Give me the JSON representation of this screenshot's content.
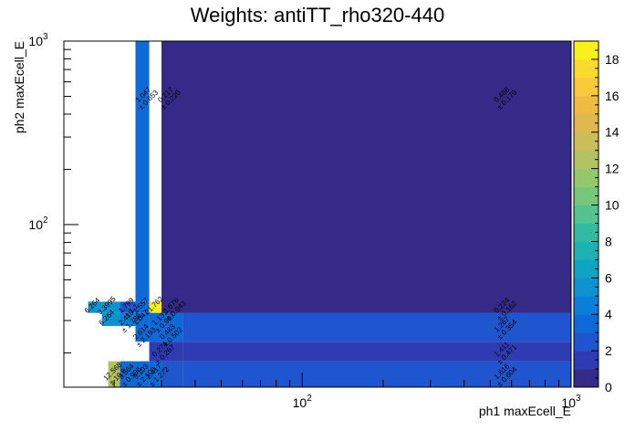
{
  "chart_data": {
    "type": "heatmap",
    "title": "Weights: antiTT_rho320-440",
    "xlabel": "ph1 maxEcell_E",
    "ylabel": "ph2 maxEcell_E",
    "x_scale": "log",
    "y_scale": "log",
    "xlim": [
      13,
      1000
    ],
    "ylim": [
      13,
      1000
    ],
    "x_tick_labels": [
      {
        "value": 100,
        "base": "10",
        "exp": "2"
      },
      {
        "value": 1000,
        "base": "10",
        "exp": "3"
      }
    ],
    "y_tick_labels": [
      {
        "value": 100,
        "base": "10",
        "exp": "2"
      },
      {
        "value": 1000,
        "base": "10",
        "exp": "3"
      }
    ],
    "colorbar": {
      "min": 0,
      "max": 19,
      "ticks": [
        0,
        2,
        4,
        6,
        8,
        10,
        12,
        14,
        16,
        18
      ],
      "palette": [
        "#352a87",
        "#2f3bb3",
        "#1f55cf",
        "#0d6ad8",
        "#0a7ed8",
        "#0d93d0",
        "#0ea4c4",
        "#1cb1b3",
        "#33bba2",
        "#53c48f",
        "#75c77b",
        "#95c86d",
        "#b3c362",
        "#cbbd57",
        "#dfb84e",
        "#efbb43",
        "#f8c93a",
        "#fadb2d",
        "#f9f01c"
      ]
    },
    "cells": [
      {
        "x0": 24,
        "x1": 27,
        "y0": 38,
        "y1": 1000,
        "value": 3.3,
        "label": "1.047",
        "err": "± 0.653",
        "lx": 26,
        "ly": 500
      },
      {
        "x0": 30,
        "x1": 1000,
        "y0": 33,
        "y1": 1000,
        "value": 0.3,
        "label": "0.217",
        "err": "± 0.220",
        "lx": 31.5,
        "ly": 500
      },
      {
        "x0": 30,
        "x1": 1000,
        "y0": 33,
        "y1": 1000,
        "value": 0.3,
        "label": "0.488",
        "err": "± 0.179",
        "lx": 560,
        "ly": 500
      },
      {
        "x0": 16,
        "x1": 18,
        "y0": 33,
        "y1": 38,
        "value": 5.5,
        "label": "6.264",
        "err": "",
        "lx": 16.8,
        "ly": 35.5
      },
      {
        "x0": 18,
        "x1": 21,
        "y0": 33,
        "y1": 38,
        "value": 5.0,
        "label": "3.3995",
        "err": "",
        "lx": 19.0,
        "ly": 35.5
      },
      {
        "x0": 21,
        "x1": 24,
        "y0": 33,
        "y1": 38,
        "value": 2.0,
        "label": "1.799",
        "err": "± 1.1",
        "lx": 22.5,
        "ly": 35.5
      },
      {
        "x0": 24,
        "x1": 27,
        "y0": 33,
        "y1": 38,
        "value": 3.3,
        "label": "1.557",
        "err": "",
        "lx": 25.5,
        "ly": 35.5
      },
      {
        "x0": 27,
        "x1": 30,
        "y0": 33,
        "y1": 38,
        "value": 18.5,
        "label": "21.762",
        "err": "",
        "lx": 28.5,
        "ly": 35.5
      },
      {
        "x0": 30,
        "x1": 36,
        "y0": 33,
        "y1": 38,
        "value": 3.0,
        "label": "1.676",
        "err": "± 0.943",
        "lx": 33,
        "ly": 35.5
      },
      {
        "x0": 30,
        "x1": 1000,
        "y0": 33,
        "y1": 38,
        "value": 0.6,
        "label": "0.224",
        "err": "± 0.162",
        "lx": 560,
        "ly": 35.5
      },
      {
        "x0": 18,
        "x1": 21,
        "y0": 28,
        "y1": 33,
        "value": 5.0,
        "label": "6.264",
        "err": "",
        "lx": 19.0,
        "ly": 30.5
      },
      {
        "x0": 21,
        "x1": 24,
        "y0": 28,
        "y1": 33,
        "value": 4.0,
        "label": "2.419",
        "err": "± 1.786",
        "lx": 22.5,
        "ly": 30.5
      },
      {
        "x0": 24,
        "x1": 27,
        "y0": 28,
        "y1": 33,
        "value": 3.0,
        "label": "1.047",
        "err": "",
        "lx": 25.5,
        "ly": 30.5
      },
      {
        "x0": 27,
        "x1": 36,
        "y0": 28,
        "y1": 33,
        "value": 3.0,
        "label": "1.131",
        "err": "± 0.967",
        "lx": 30,
        "ly": 30.5
      },
      {
        "x0": 36,
        "x1": 1000,
        "y0": 23,
        "y1": 33,
        "value": 2.5,
        "label": "1.267",
        "err": "± 0.354",
        "lx": 560,
        "ly": 28.0
      },
      {
        "x0": 24,
        "x1": 27,
        "y0": 23,
        "y1": 28,
        "value": 3.3,
        "label": "2.614",
        "err": "± 2.193",
        "lx": 25.5,
        "ly": 25.5
      },
      {
        "x0": 27,
        "x1": 36,
        "y0": 23,
        "y1": 28,
        "value": 3.0,
        "label": "0.483",
        "err": "± 0.502",
        "lx": 32,
        "ly": 25.5
      },
      {
        "x0": 36,
        "x1": 1000,
        "y0": 18,
        "y1": 23,
        "value": 1.5,
        "label": "1.411",
        "err": "± 0.471",
        "lx": 560,
        "ly": 20.5
      },
      {
        "x0": 27,
        "x1": 36,
        "y0": 18,
        "y1": 23,
        "value": 1.5,
        "label": "0.274",
        "err": "± 0.267",
        "lx": 30,
        "ly": 20.5
      },
      {
        "x0": 19,
        "x1": 21,
        "y0": 13,
        "y1": 18,
        "value": 12.5,
        "label": "12.568",
        "err": "± 10.8",
        "lx": 20.0,
        "ly": 15.5
      },
      {
        "x0": 21,
        "x1": 24,
        "y0": 13,
        "y1": 18,
        "value": 3.0,
        "label": "3.564",
        "err": "± 0.996",
        "lx": 22.5,
        "ly": 15.5
      },
      {
        "x0": 24,
        "x1": 27,
        "y0": 13,
        "y1": 18,
        "value": 3.3,
        "label": "3.103",
        "err": "± 2.103",
        "lx": 25.5,
        "ly": 15.5
      },
      {
        "x0": 27,
        "x1": 30,
        "y0": 13,
        "y1": 18,
        "value": 3.0,
        "label": "2.417",
        "err": "± 1.272",
        "lx": 28.5,
        "ly": 15.5
      },
      {
        "x0": 30,
        "x1": 36,
        "y0": 13,
        "y1": 18,
        "value": 2.5,
        "label": "",
        "err": "",
        "lx": 33,
        "ly": 15.5
      },
      {
        "x0": 36,
        "x1": 1000,
        "y0": 13,
        "y1": 18,
        "value": 2.5,
        "label": "1.616",
        "err": "± 0.604",
        "lx": 560,
        "ly": 15.5
      }
    ]
  }
}
